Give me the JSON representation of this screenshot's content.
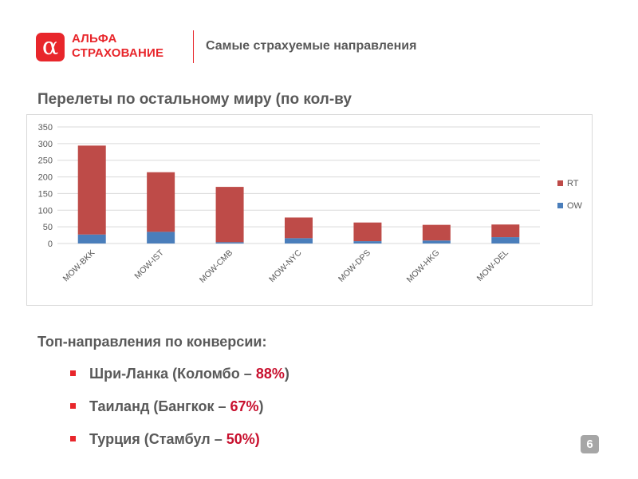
{
  "header": {
    "logo_line1": "АЛЬФА",
    "logo_line2": "СТРАХОВАНИЕ",
    "logo_mark": "α",
    "title": "Самые страхуемые направления"
  },
  "subtitle": "Перелеты по остальному миру (по кол-ву",
  "chart_data": {
    "type": "bar",
    "stacked": true,
    "categories": [
      "MOW-BKK",
      "MOW-IST",
      "MOW-CMB",
      "MOW-NYC",
      "MOW-DPS",
      "MOW-HKG",
      "MOW-DEL"
    ],
    "series": [
      {
        "name": "OW",
        "color": "#4a7ebb",
        "values": [
          27,
          35,
          4,
          16,
          7,
          9,
          19
        ]
      },
      {
        "name": "RT",
        "color": "#be4b48",
        "values": [
          267,
          179,
          166,
          62,
          56,
          47,
          38
        ]
      }
    ],
    "ylim": [
      0,
      350
    ],
    "yticks": [
      0,
      50,
      100,
      150,
      200,
      250,
      300,
      350
    ],
    "grid": true,
    "legend": "right"
  },
  "tops": {
    "heading": "Топ-направления по конверсии:",
    "items": [
      {
        "text": "Шри-Ланка (Коломбо – ",
        "pct": "88%",
        "close": ")"
      },
      {
        "text": "Таиланд (Бангкок – ",
        "pct": "67%",
        "close": ")"
      },
      {
        "text": "Турция (Стамбул – ",
        "pct": "50%)",
        "close": ""
      }
    ]
  },
  "page_number": "6",
  "colors": {
    "brand_red": "#e8262b",
    "text_gray": "#595959"
  }
}
